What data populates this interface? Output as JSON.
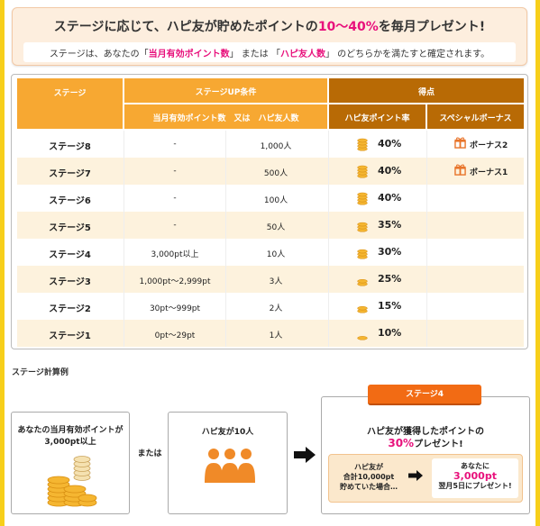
{
  "banner": {
    "title_pre": "ステージに応じて、ハピ友が貯めたポイントの",
    "title_highlight": "10〜40%",
    "title_post": "を毎月プレゼント!",
    "sub_pre": "ステージは、あなたの「",
    "sub_hl1": "当月有効ポイント数",
    "sub_mid": "」 または 「",
    "sub_hl2": "ハピ友人数",
    "sub_post": "」 のどちらかを満たすと確定されます。"
  },
  "table": {
    "headers": {
      "stage": "ステージ",
      "condition": "ステージUP条件",
      "condition_sub": "当月有効ポイント数　又は　ハピ友人数",
      "score": "得点",
      "rate": "ハピ友ポイント率",
      "bonus": "スペシャルボーナス"
    },
    "rows": [
      {
        "stage": "ステージ8",
        "points": "-",
        "friends": "1,000人",
        "rate": "40%",
        "bonus": "ボーナス2",
        "coins": 4
      },
      {
        "stage": "ステージ7",
        "points": "-",
        "friends": "500人",
        "rate": "40%",
        "bonus": "ボーナス1",
        "coins": 4
      },
      {
        "stage": "ステージ6",
        "points": "-",
        "friends": "100人",
        "rate": "40%",
        "bonus": "",
        "coins": 4
      },
      {
        "stage": "ステージ5",
        "points": "-",
        "friends": "50人",
        "rate": "35%",
        "bonus": "",
        "coins": 3
      },
      {
        "stage": "ステージ4",
        "points": "3,000pt以上",
        "friends": "10人",
        "rate": "30%",
        "bonus": "",
        "coins": 3
      },
      {
        "stage": "ステージ3",
        "points": "1,000pt〜2,999pt",
        "friends": "3人",
        "rate": "25%",
        "bonus": "",
        "coins": 2
      },
      {
        "stage": "ステージ2",
        "points": "30pt〜999pt",
        "friends": "2人",
        "rate": "15%",
        "bonus": "",
        "coins": 2
      },
      {
        "stage": "ステージ1",
        "points": "0pt〜29pt",
        "friends": "1人",
        "rate": "10%",
        "bonus": "",
        "coins": 1
      }
    ]
  },
  "example": {
    "title": "ステージ計算例",
    "box_a_line1": "あなたの当月有効ポイントが",
    "box_a_line2": "3,000pt以上",
    "or": "または",
    "box_b": "ハピ友が10人",
    "badge": "ステージ4",
    "result_line1": "ハピ友が獲得したポイントの",
    "result_pct": "30%",
    "result_post": "プレゼント!",
    "inner_left_1": "ハピ友が",
    "inner_left_2": "合計10,000pt",
    "inner_left_3": "貯めていた場合…",
    "inner_right_1": "あなたに",
    "inner_right_amt": "3,000pt",
    "inner_right_3": "翌月5日にプレゼント!"
  },
  "colors": {
    "border_yellow": "#f7cf1a",
    "header_orange": "#f7a832",
    "header_brown": "#b86a05",
    "highlight_pink": "#e8117c",
    "badge_orange": "#f26b14",
    "row_alt": "#fdf2dd"
  },
  "icons": [
    "coin-stack-icon",
    "gift-icon",
    "person-group-icon",
    "arrow-right-icon"
  ]
}
